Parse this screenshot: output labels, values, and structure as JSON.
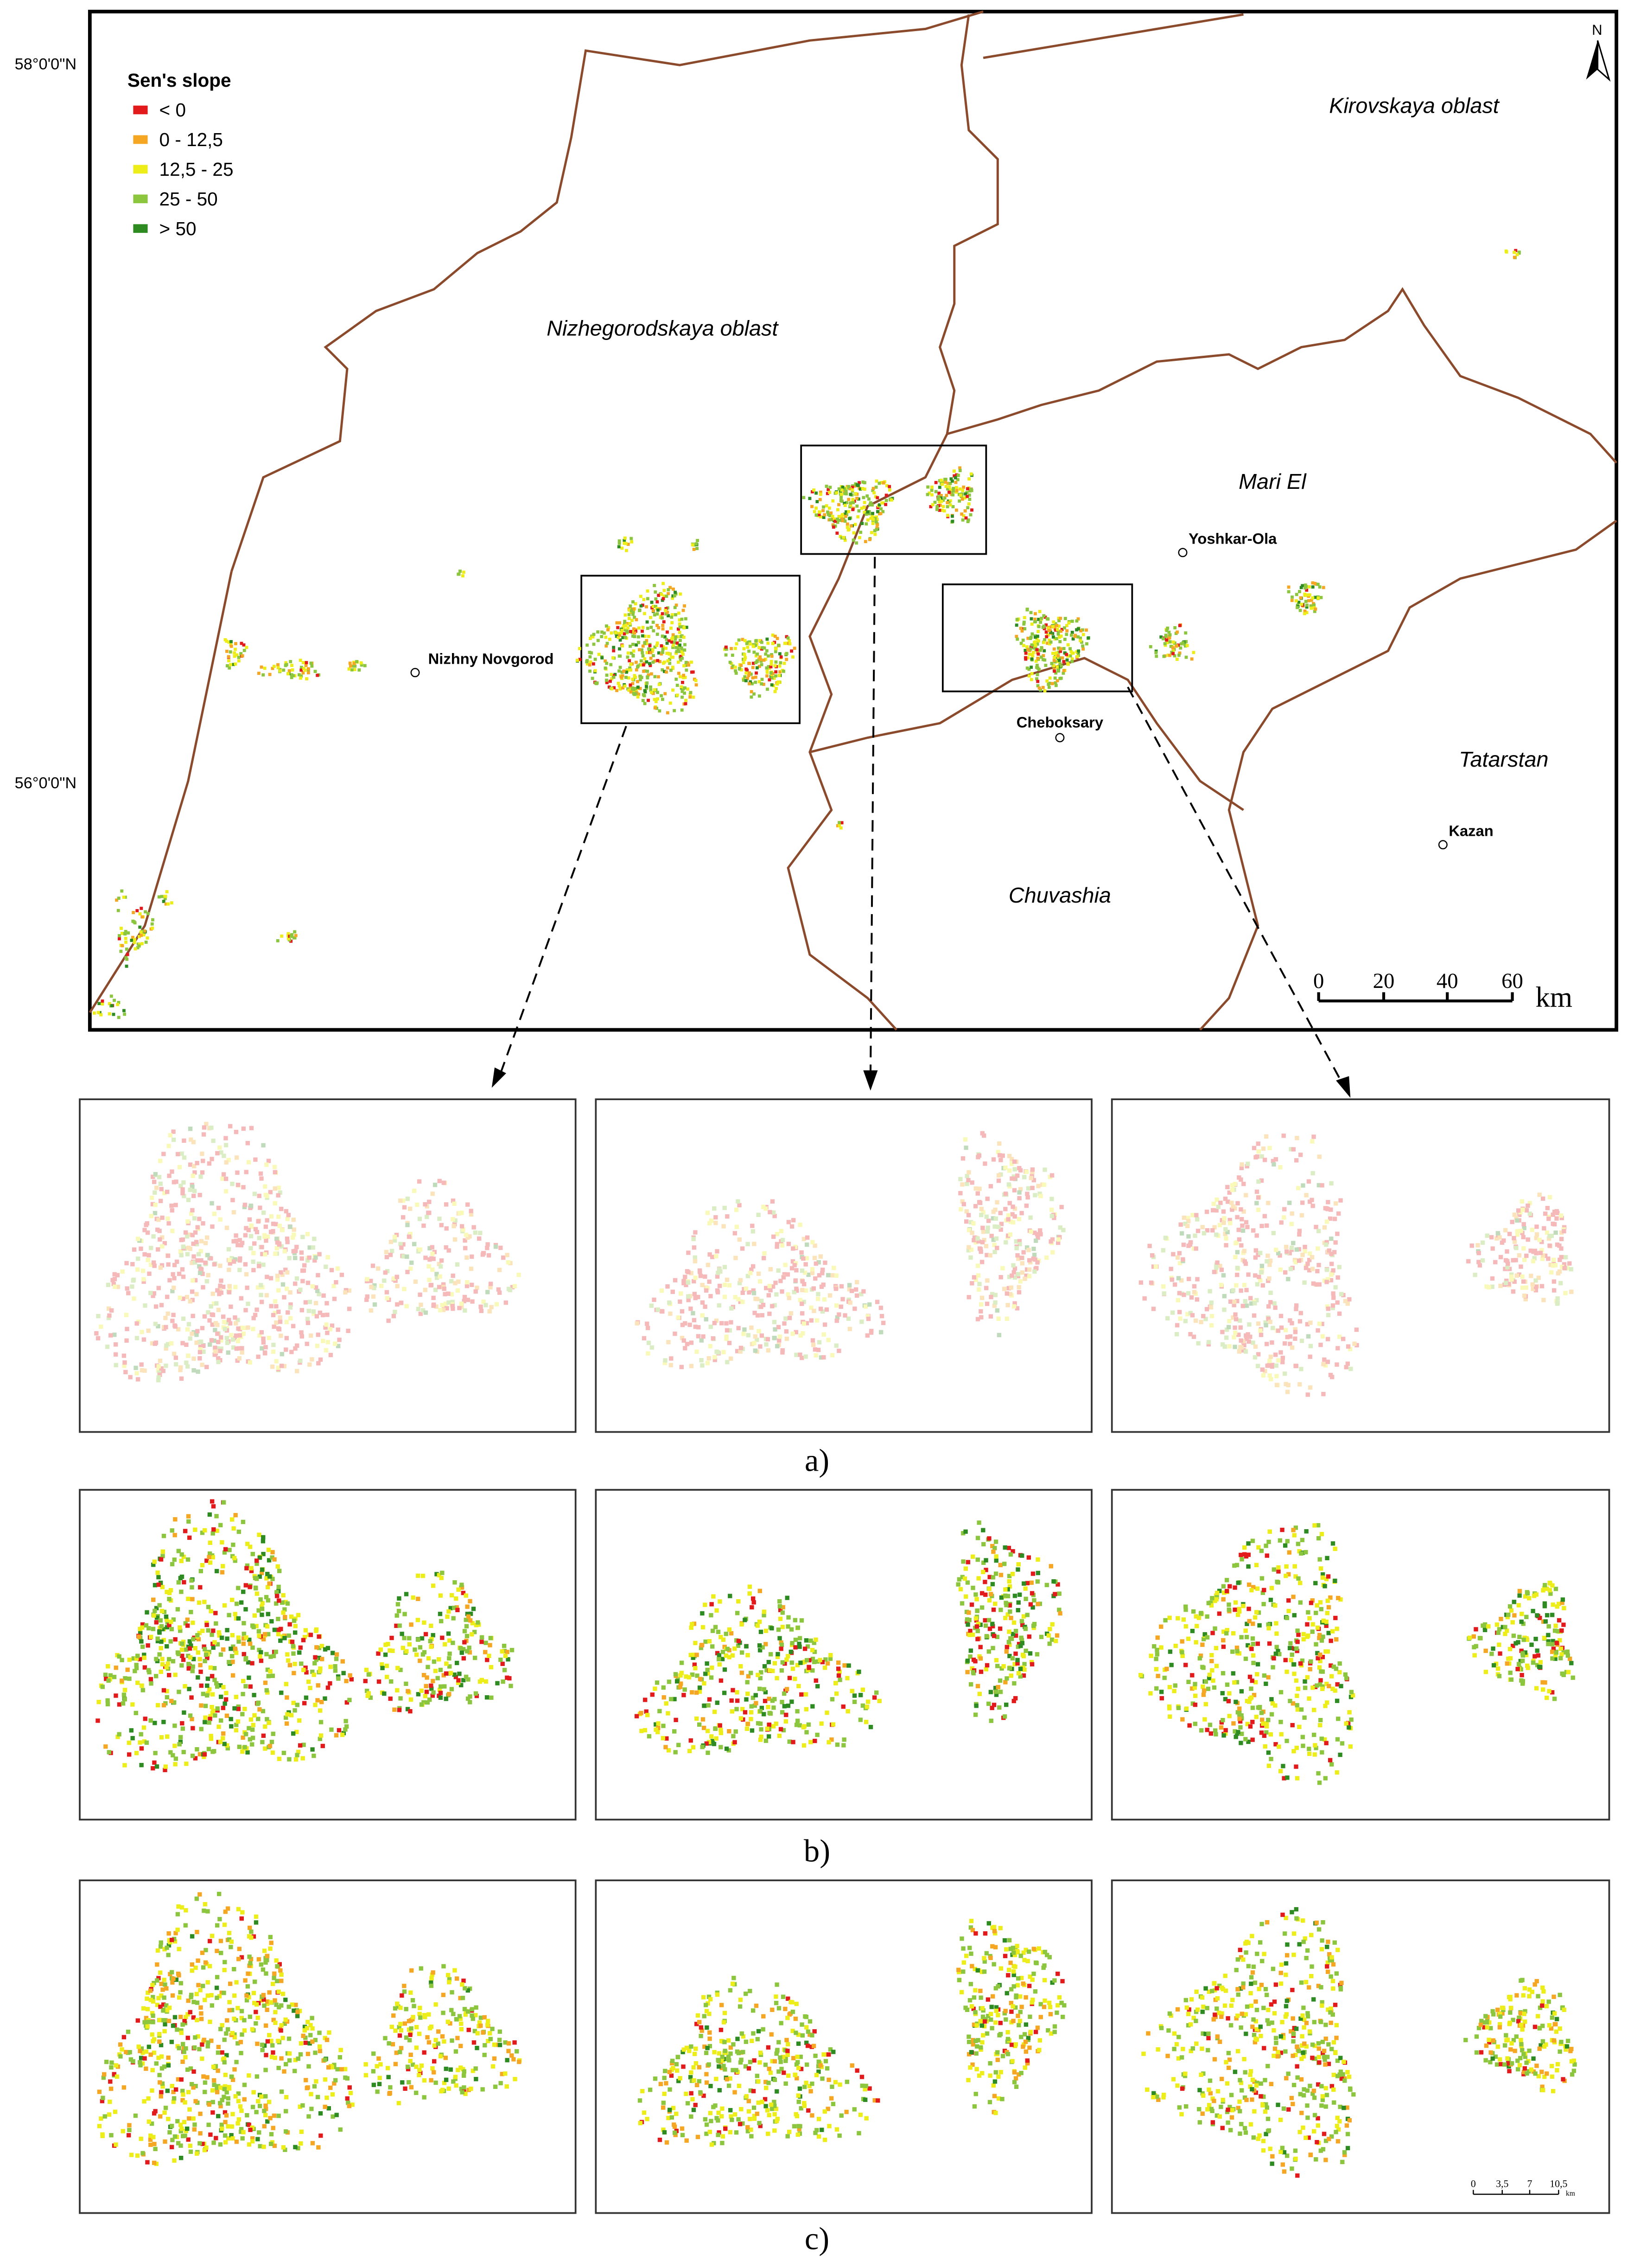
{
  "map": {
    "legend": {
      "title": "Sen's slope",
      "items": [
        {
          "label": "< 0",
          "color": "#e31a1c"
        },
        {
          "label": "0 - 12,5",
          "color": "#f5a623"
        },
        {
          "label": "12,5 - 25",
          "color": "#eded1a"
        },
        {
          "label": "25 - 50",
          "color": "#8cc63f"
        },
        {
          "label": "> 50",
          "color": "#2e8b22"
        }
      ]
    },
    "latitude_labels": [
      "58°0'0\"N",
      "56°0'0\"N"
    ],
    "north_arrow": "N",
    "regions": [
      "Kirovskaya oblast",
      "Nizhegorodskaya oblast",
      "Mari El",
      "Tatarstan",
      "Chuvashia"
    ],
    "cities": [
      "Yoshkar-Ola",
      "Nizhny Novgorod",
      "Cheboksary",
      "Kazan"
    ],
    "scale_bar": {
      "ticks": [
        "0",
        "20",
        "40",
        "60"
      ],
      "unit": "km"
    }
  },
  "panels": {
    "labels": [
      "a)",
      "b)",
      "c)"
    ],
    "scale_bar": {
      "ticks": [
        "0",
        "3,5",
        "7",
        "10,5"
      ],
      "unit": "km"
    }
  }
}
